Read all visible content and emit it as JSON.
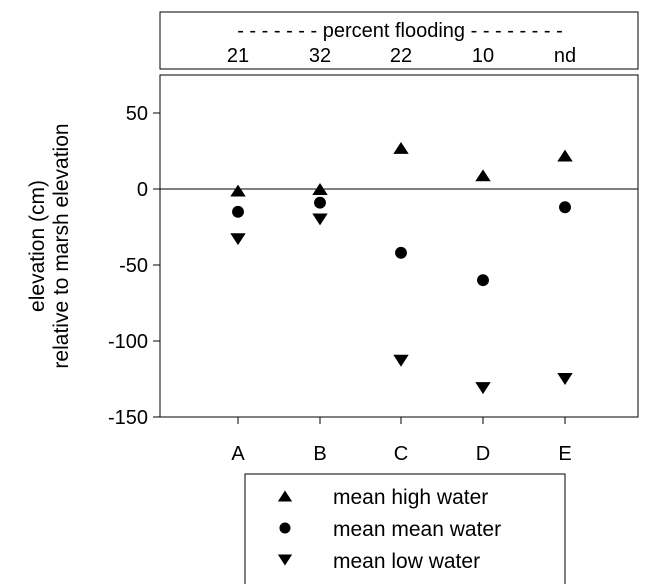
{
  "chart_data": {
    "type": "scatter",
    "categories": [
      "A",
      "B",
      "C",
      "D",
      "E"
    ],
    "series": [
      {
        "name": "mean high water",
        "marker": "triangle-up",
        "values": [
          -1,
          0,
          27,
          9,
          22
        ]
      },
      {
        "name": "mean mean water",
        "marker": "circle",
        "values": [
          -15,
          -9,
          -42,
          -60,
          -12
        ]
      },
      {
        "name": "mean low water",
        "marker": "triangle-down",
        "values": [
          -33,
          -20,
          -113,
          -131,
          -125
        ]
      }
    ],
    "ylabel_line1": "elevation (cm)",
    "ylabel_line2": "relative to marsh elevation",
    "ylim": [
      -150,
      75
    ],
    "yticks": [
      50,
      0,
      -50,
      -100,
      -150
    ],
    "reference_line": 0,
    "top_axis": {
      "title": "- - - - - - - percent flooding - - - - - - - -",
      "values": [
        "21",
        "32",
        "22",
        "10",
        "nd"
      ]
    },
    "legend_position": "bottom",
    "grid": false
  }
}
